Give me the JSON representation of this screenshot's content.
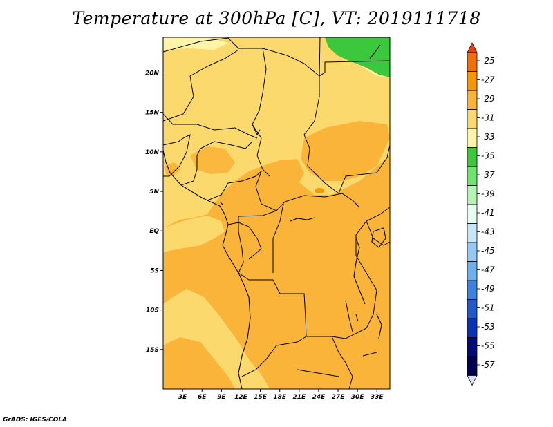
{
  "title": "Temperature at 300hPa [C], VT: 2019111718",
  "credit": "GrADS: IGES/COLA",
  "map": {
    "lon_range": [
      0,
      35
    ],
    "lat_range": [
      -20,
      24.5
    ],
    "x_ticks": [
      {
        "value": 3,
        "label": "3E"
      },
      {
        "value": 6,
        "label": "6E"
      },
      {
        "value": 9,
        "label": "9E"
      },
      {
        "value": 12,
        "label": "12E"
      },
      {
        "value": 15,
        "label": "15E"
      },
      {
        "value": 18,
        "label": "18E"
      },
      {
        "value": 21,
        "label": "21E"
      },
      {
        "value": 24,
        "label": "24E"
      },
      {
        "value": 27,
        "label": "27E"
      },
      {
        "value": 30,
        "label": "30E"
      },
      {
        "value": 33,
        "label": "33E"
      }
    ],
    "y_ticks": [
      {
        "value": 20,
        "label": "20N"
      },
      {
        "value": 15,
        "label": "15N"
      },
      {
        "value": 10,
        "label": "10N"
      },
      {
        "value": 5,
        "label": "5N"
      },
      {
        "value": 0,
        "label": "EQ"
      },
      {
        "value": -5,
        "label": "5S"
      },
      {
        "value": -10,
        "label": "10S"
      },
      {
        "value": -15,
        "label": "15S"
      }
    ]
  },
  "colorbar": {
    "labels": [
      "-25",
      "-27",
      "-29",
      "-31",
      "-33",
      "-35",
      "-37",
      "-39",
      "-41",
      "-43",
      "-45",
      "-47",
      "-49",
      "-51",
      "-53",
      "-55",
      "-57"
    ],
    "colors": [
      "#f03c00",
      "#f56e00",
      "#fa9600",
      "#fbb43a",
      "#fcd96c",
      "#fef5a8",
      "#3cc83c",
      "#6ee66e",
      "#b4f5b4",
      "#e6fff0",
      "#c8e6fa",
      "#96c8f5",
      "#6eaff0",
      "#3c82e1",
      "#1e5ac8",
      "#0a32b4",
      "#000a78",
      "#000050"
    ],
    "top_color": "#f03c00",
    "bottom_color": "#e0e0ff"
  }
}
